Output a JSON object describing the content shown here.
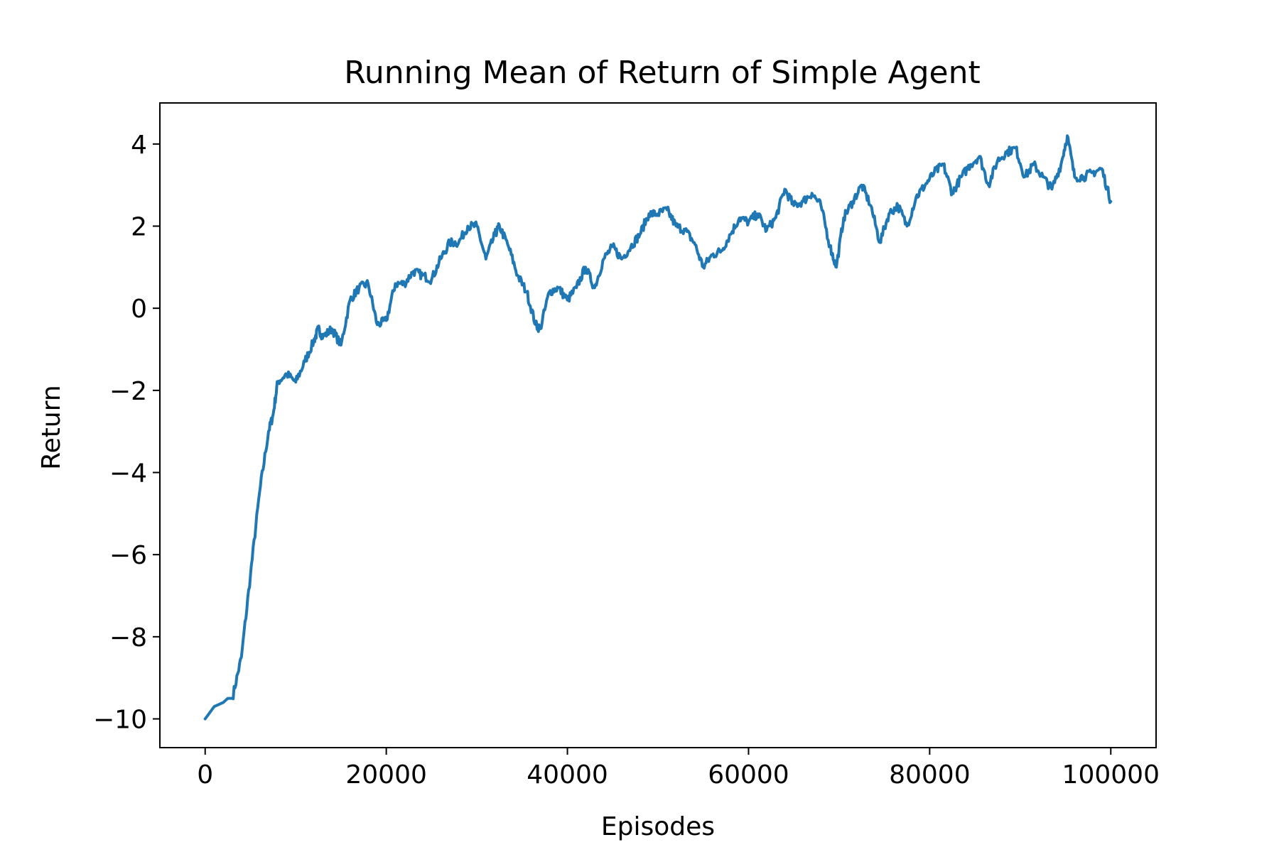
{
  "chart_data": {
    "type": "line",
    "title": "Running Mean of Return of Simple Agent",
    "xlabel": "Episodes",
    "ylabel": "Return",
    "xlim": [
      -5000,
      105000
    ],
    "ylim": [
      -10.7,
      5.0
    ],
    "xticks": [
      0,
      20000,
      40000,
      60000,
      80000,
      100000
    ],
    "xtick_labels": [
      "0",
      "20000",
      "40000",
      "60000",
      "80000",
      "100000"
    ],
    "yticks": [
      -10,
      -8,
      -6,
      -4,
      -2,
      0,
      2,
      4
    ],
    "ytick_labels": [
      "−10",
      "−8",
      "−6",
      "−4",
      "−2",
      "0",
      "2",
      "4"
    ],
    "grid": false,
    "legend": "none",
    "series": [
      {
        "color": "#1f77b4",
        "x": [
          0,
          1000,
          2000,
          2500,
          3000,
          4000,
          5000,
          6000,
          7000,
          7500,
          8000,
          9000,
          10000,
          11000,
          12000,
          12500,
          13000,
          14000,
          15000,
          16000,
          17000,
          18000,
          19000,
          20000,
          21000,
          22000,
          23000,
          24000,
          25000,
          26000,
          27000,
          28000,
          29000,
          30000,
          31000,
          32000,
          32500,
          33500,
          34500,
          35500,
          36500,
          37000,
          38000,
          39000,
          40000,
          41000,
          42000,
          43000,
          44000,
          45000,
          46000,
          47000,
          48000,
          49000,
          50000,
          51000,
          52000,
          53000,
          54000,
          55000,
          56000,
          57000,
          58000,
          59000,
          60000,
          61000,
          62000,
          63000,
          64000,
          65000,
          66000,
          67000,
          68000,
          69000,
          69700,
          70500,
          71500,
          72500,
          73500,
          74500,
          75500,
          76500,
          77500,
          78500,
          79500,
          80500,
          81500,
          82500,
          83500,
          84500,
          85500,
          86500,
          87500,
          88500,
          89500,
          90500,
          91500,
          92500,
          93500,
          94500,
          95200,
          96000,
          97000,
          98000,
          99000,
          100000
        ],
        "y": [
          -10.0,
          -9.7,
          -9.6,
          -9.5,
          -9.5,
          -8.5,
          -6.5,
          -4.5,
          -3.0,
          -2.6,
          -1.8,
          -1.6,
          -1.8,
          -1.3,
          -0.8,
          -0.5,
          -0.7,
          -0.5,
          -0.9,
          0.2,
          0.5,
          0.6,
          -0.4,
          -0.3,
          0.6,
          0.6,
          0.9,
          0.8,
          0.7,
          1.2,
          1.6,
          1.6,
          2.0,
          2.0,
          1.2,
          1.8,
          2.0,
          1.5,
          0.8,
          0.4,
          -0.4,
          -0.5,
          0.4,
          0.5,
          0.2,
          0.5,
          1.0,
          0.5,
          1.2,
          1.5,
          1.2,
          1.5,
          1.8,
          2.3,
          2.3,
          2.4,
          2.0,
          1.9,
          1.6,
          1.0,
          1.3,
          1.4,
          1.8,
          2.2,
          2.1,
          2.3,
          1.9,
          2.2,
          2.9,
          2.5,
          2.6,
          2.8,
          2.5,
          1.5,
          1.0,
          2.2,
          2.6,
          3.0,
          2.5,
          1.6,
          2.3,
          2.5,
          2.0,
          2.7,
          3.0,
          3.3,
          3.5,
          2.8,
          3.2,
          3.5,
          3.7,
          3.0,
          3.6,
          3.8,
          3.9,
          3.2,
          3.5,
          3.2,
          2.9,
          3.5,
          4.2,
          3.2,
          3.2,
          3.3,
          3.4,
          2.6
        ]
      }
    ]
  }
}
